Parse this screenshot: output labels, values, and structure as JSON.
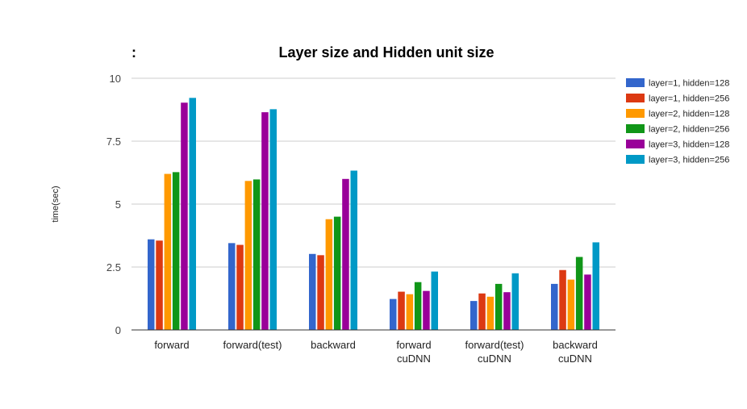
{
  "chart_data": {
    "type": "bar",
    "title_prefix": ":",
    "title": "Layer size and Hidden unit size",
    "xlabel": "",
    "ylabel": "time(sec)",
    "ylim": [
      0,
      10
    ],
    "yticks": [
      0,
      2.5,
      5,
      7.5,
      10
    ],
    "ytick_labels": [
      "0",
      "2.5",
      "5",
      "7.5",
      "10"
    ],
    "grid": true,
    "legend_position": "right",
    "categories": [
      [
        "forward"
      ],
      [
        "forward(test)"
      ],
      [
        "backward"
      ],
      [
        "forward",
        "cuDNN"
      ],
      [
        "forward(test)",
        "cuDNN"
      ],
      [
        "backward",
        "cuDNN"
      ]
    ],
    "series": [
      {
        "name": "layer=1, hidden=128",
        "color": "#3366cc",
        "values": [
          3.6,
          3.45,
          3.02,
          1.23,
          1.15,
          1.83
        ]
      },
      {
        "name": "layer=1, hidden=256",
        "color": "#dc3912",
        "values": [
          3.55,
          3.38,
          2.97,
          1.52,
          1.45,
          2.38
        ]
      },
      {
        "name": "layer=2, hidden=128",
        "color": "#ff9900",
        "values": [
          6.2,
          5.92,
          4.4,
          1.42,
          1.32,
          2.0
        ]
      },
      {
        "name": "layer=2, hidden=256",
        "color": "#109618",
        "values": [
          6.27,
          5.98,
          4.5,
          1.9,
          1.83,
          2.9
        ]
      },
      {
        "name": "layer=3, hidden=128",
        "color": "#990099",
        "values": [
          9.03,
          8.65,
          6.0,
          1.55,
          1.5,
          2.2
        ]
      },
      {
        "name": "layer=3, hidden=256",
        "color": "#0099c6",
        "values": [
          9.22,
          8.77,
          6.33,
          2.32,
          2.25,
          3.48
        ]
      }
    ]
  }
}
